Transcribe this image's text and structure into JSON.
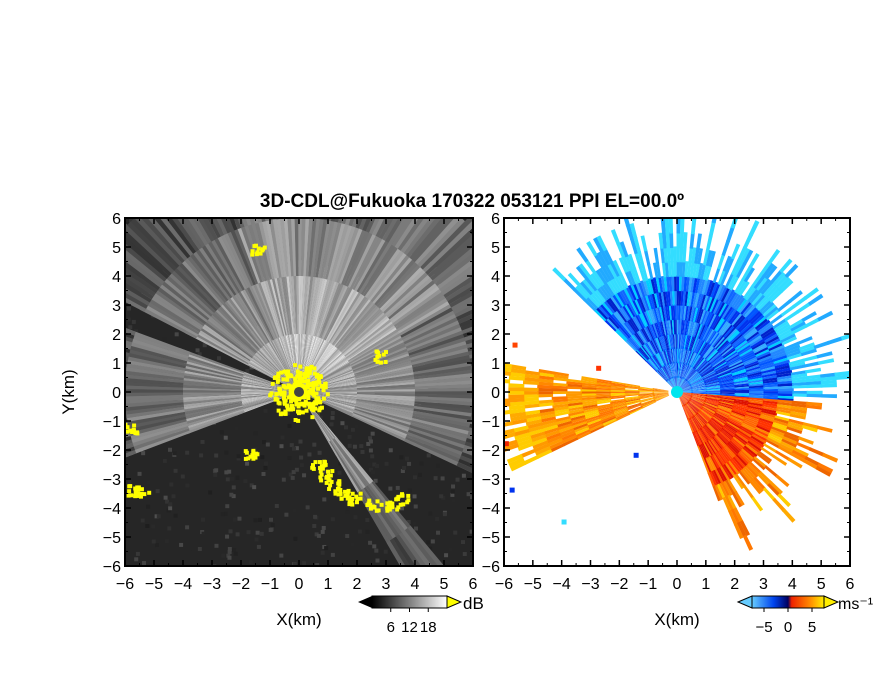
{
  "figure": {
    "title": "3D-CDL@Fukuoka 170322 053121 PPI EL=00.0º"
  },
  "chart_data": [
    {
      "type": "heatmap",
      "panel": "left",
      "description_kind": "PPI backscatter intensity",
      "xlabel": "X(km)",
      "ylabel": "Y(km)",
      "xlim": [
        -6,
        6
      ],
      "ylim": [
        -6,
        6
      ],
      "xticks": [
        -6,
        -5,
        -4,
        -3,
        -2,
        -1,
        0,
        1,
        2,
        3,
        4,
        5,
        6
      ],
      "yticks": [
        -6,
        -5,
        -4,
        -3,
        -2,
        -1,
        0,
        1,
        2,
        3,
        4,
        5,
        6
      ],
      "colorbar": {
        "unit": "dB",
        "ticks": [
          6,
          12,
          18
        ],
        "colormap": "grayscale",
        "over_color": "#ffff00"
      },
      "features": {
        "bright_sector_deg_from_north": [
          -110,
          150
        ],
        "blocked_sector_deg": [
          -70,
          -62
        ],
        "saturated_color": "#ffff00",
        "background_color": "#222222"
      }
    },
    {
      "type": "heatmap",
      "panel": "right",
      "description_kind": "PPI radial velocity",
      "xlabel": "X(km)",
      "xlim": [
        -6,
        6
      ],
      "ylim": [
        -6,
        6
      ],
      "xticks": [
        -6,
        -5,
        -4,
        -3,
        -2,
        -1,
        0,
        1,
        2,
        3,
        4,
        5,
        6
      ],
      "yticks": [
        -6,
        -5,
        -4,
        -3,
        -2,
        -1,
        0,
        1,
        2,
        3,
        4,
        5,
        6
      ],
      "colorbar": {
        "unit": "ms⁻¹",
        "ticks": [
          -5,
          0,
          5
        ],
        "colormap": "cyan-blue-red-orange-yellow"
      },
      "features": {
        "approaching_sector_deg": [
          -45,
          95
        ],
        "receding_sector_deg": [
          95,
          160
        ],
        "west_sector_deg": [
          -115,
          -80
        ],
        "center_marker_color": "#00e5ee"
      }
    }
  ]
}
